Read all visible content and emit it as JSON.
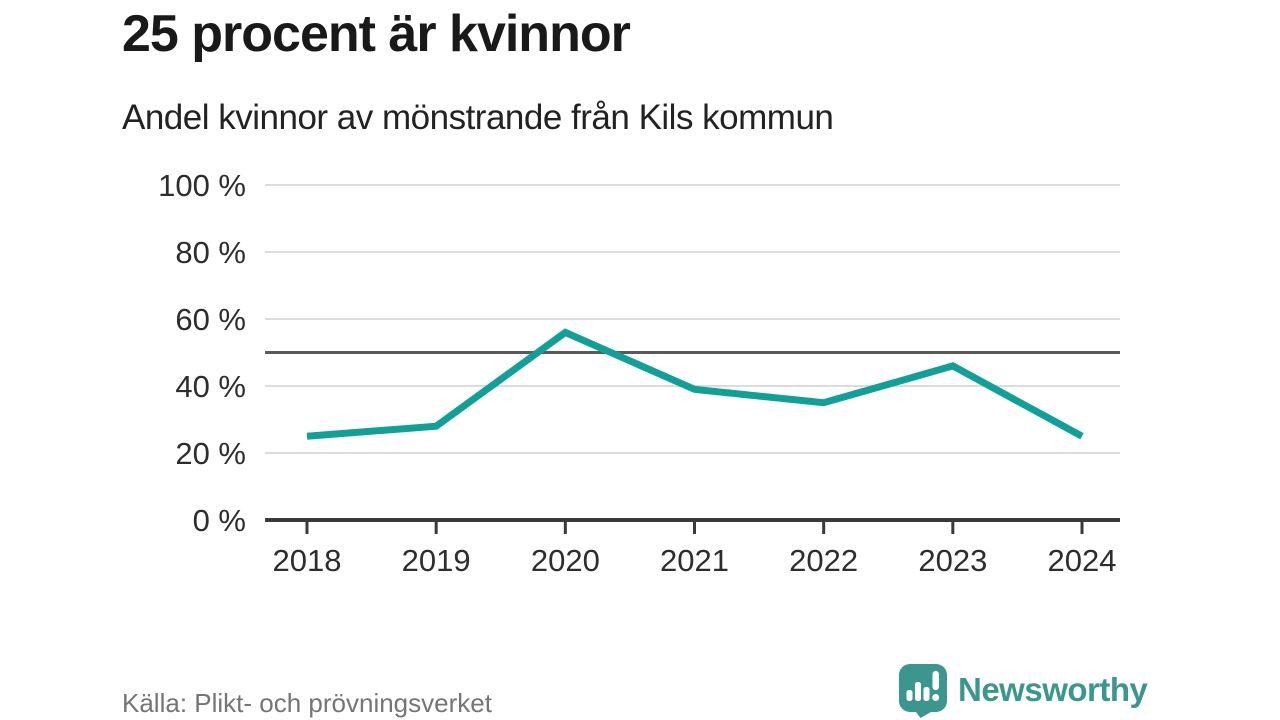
{
  "chart_data": {
    "type": "line",
    "title": "25 procent är kvinnor",
    "subtitle": "Andel kvinnor av mönstrande från Kils kommun",
    "categories": [
      "2018",
      "2019",
      "2020",
      "2021",
      "2022",
      "2023",
      "2024"
    ],
    "series": [
      {
        "name": "Andel kvinnor av mönstrande",
        "values": [
          25,
          28,
          56,
          39,
          35,
          46,
          25
        ]
      }
    ],
    "unit": "%",
    "ylim": [
      0,
      100
    ],
    "yticks": [
      0,
      20,
      40,
      60,
      80,
      100
    ],
    "ytick_suffix": " %",
    "reference_line": 50,
    "grid": true,
    "legend": false,
    "colors": {
      "line": "#11a098",
      "grid": "#dcdcdc",
      "reference": "#5a5a5a",
      "axis": "#3a3a3a",
      "tick_label": "#2d2d2d"
    }
  },
  "footer": {
    "source": "Källa: Plikt- och prövningsverket",
    "brand": "Newsworthy",
    "brand_color": "#3b968e"
  }
}
